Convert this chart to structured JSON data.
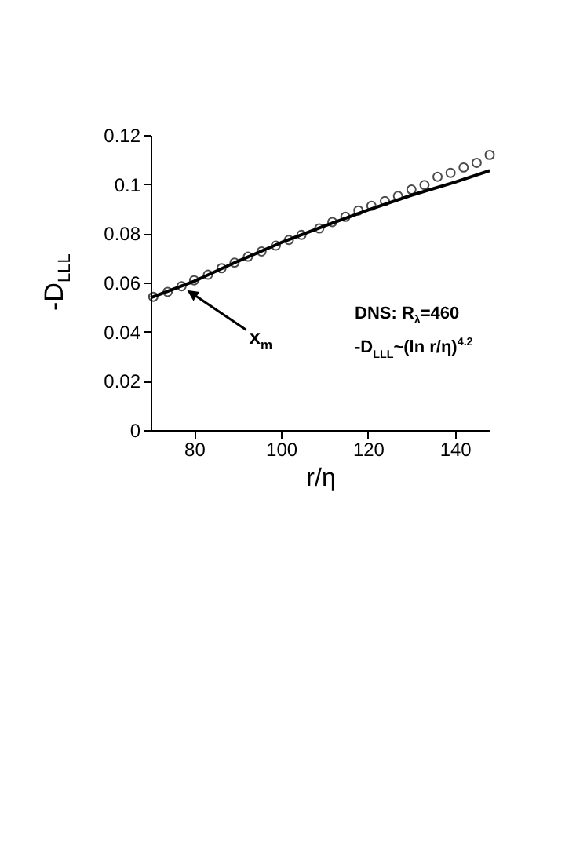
{
  "chart_data": {
    "type": "scatter",
    "xlabel": "r/η",
    "ylabel": "-D$_{LLL}$",
    "annotations": [
      {
        "text": "x$_{m}$",
        "x": 77.5,
        "y": 0.058
      },
      "DNS: R$_{λ}$=460",
      "-D$_{LLL}$~(ln r/η)$^{4.2}$"
    ],
    "series": [
      {
        "type": "scatter",
        "color": "#000000",
        "marker": "circle",
        "x": [
          70.6,
          73.9,
          77.1,
          80,
          83.2,
          86.3,
          89.3,
          92.4,
          95.5,
          98.8,
          101.8,
          104.7,
          108.8,
          111.8,
          114.8,
          117.8,
          120.8,
          123.9,
          126.9,
          130,
          133,
          136,
          139,
          142,
          145,
          148
        ],
        "values": [
          0.0542,
          0.0562,
          0.0585,
          0.0609,
          0.0632,
          0.0658,
          0.0681,
          0.0705,
          0.0726,
          0.075,
          0.0773,
          0.0794,
          0.082,
          0.0846,
          0.0867,
          0.0893,
          0.0912,
          0.0931,
          0.0952,
          0.0978,
          0.0997,
          0.103,
          0.1046,
          0.1068,
          0.1087,
          0.1119
        ]
      },
      {
        "type": "line",
        "color": "#000000",
        "line_style": "solid",
        "x": [
          70,
          80,
          90,
          100,
          110,
          120,
          130,
          140,
          148
        ],
        "values": [
          0.0538,
          0.0605,
          0.0686,
          0.0762,
          0.083,
          0.0895,
          0.0955,
          0.1008,
          0.1055
        ]
      }
    ],
    "xlim": [
      70,
      148
    ],
    "xticks": [
      80,
      100,
      120,
      140
    ],
    "ylim": [
      0,
      0.12
    ],
    "yticks": [
      0,
      0.02,
      0.04,
      0.06,
      0.08,
      0.1,
      0.12
    ],
    "grid": false
  }
}
